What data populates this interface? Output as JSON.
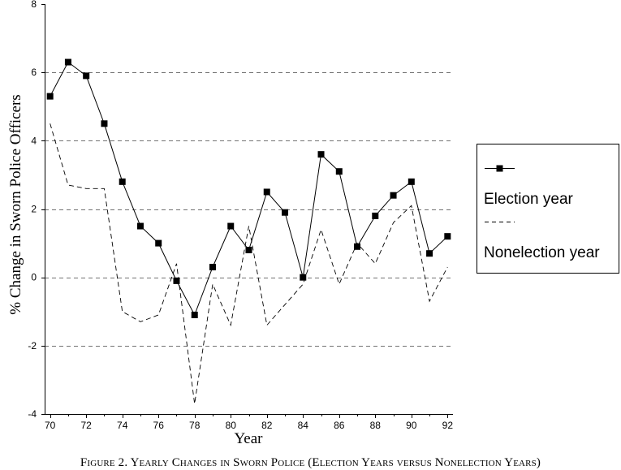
{
  "chart_data": {
    "type": "line",
    "xlabel": "Year",
    "ylabel": "% Change in Sworn Police Officers",
    "x": [
      70,
      71,
      72,
      73,
      74,
      75,
      76,
      77,
      78,
      79,
      80,
      81,
      82,
      83,
      84,
      85,
      86,
      87,
      88,
      89,
      90,
      91,
      92
    ],
    "xticks": [
      70,
      72,
      74,
      76,
      78,
      80,
      82,
      84,
      86,
      88,
      90,
      92
    ],
    "yticks": [
      -4,
      -2,
      0,
      2,
      4,
      6,
      8
    ],
    "xlim": [
      70,
      92
    ],
    "ylim": [
      -4,
      8
    ],
    "grid": true,
    "legend": "right",
    "series": [
      {
        "name": "Election year",
        "color": "#000000",
        "linestyle": "solid",
        "marker": "square",
        "values": [
          5.3,
          6.3,
          5.9,
          4.5,
          2.8,
          1.5,
          1.0,
          -0.1,
          -1.1,
          0.3,
          1.5,
          0.8,
          2.5,
          1.9,
          0.0,
          3.6,
          3.1,
          0.9,
          1.8,
          2.4,
          2.8,
          0.7,
          1.2
        ]
      },
      {
        "name": "Nonelection year",
        "color": "#000000",
        "linestyle": "dashed",
        "marker": "none",
        "values": [
          4.5,
          2.7,
          2.6,
          2.6,
          -1.0,
          -1.3,
          -1.1,
          0.4,
          -3.7,
          -0.2,
          -1.4,
          1.5,
          -1.4,
          -0.8,
          -0.2,
          1.4,
          -0.2,
          1.0,
          0.4,
          1.6,
          2.1,
          -0.7,
          0.3
        ]
      }
    ]
  },
  "caption": "Figure 2. Yearly Changes in Sworn Police (Election Years versus Nonelection Years)"
}
